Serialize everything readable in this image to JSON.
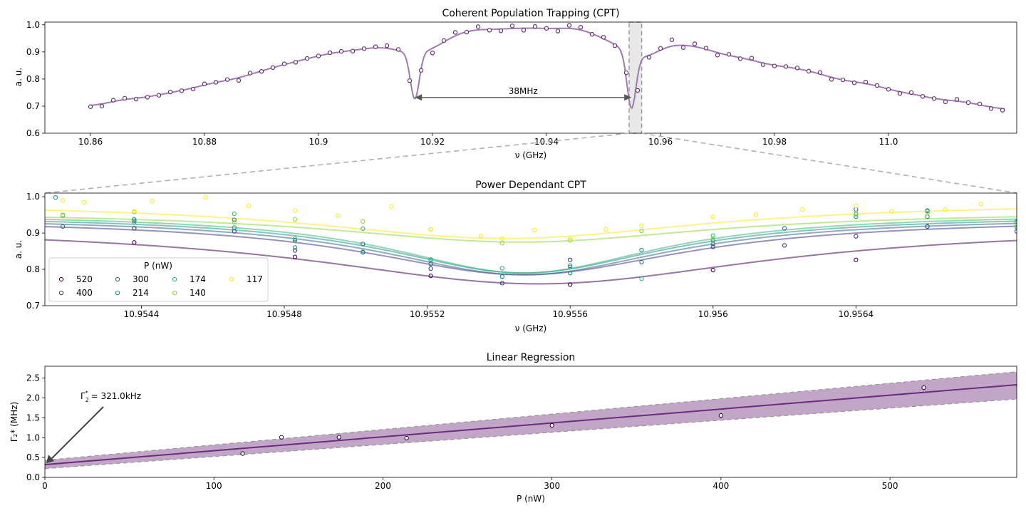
{
  "chart_data": [
    {
      "type": "scatter",
      "title": "Coherent Population Trapping (CPT)",
      "xlabel": "ν (GHz)",
      "ylabel": "a. u.",
      "xlim": [
        10.852,
        11.0225
      ],
      "ylim": [
        0.6,
        1.01
      ],
      "xticks": [
        10.86,
        10.88,
        10.9,
        10.92,
        10.94,
        10.96,
        10.98,
        11.0
      ],
      "xtick_labels": [
        "10.86",
        "10.88",
        "10.9",
        "10.92",
        "10.94",
        "10.96",
        "10.98",
        "11.0"
      ],
      "yticks": [
        0.6,
        0.7,
        0.8,
        0.9,
        1.0
      ],
      "ytick_labels": [
        "0.6",
        "0.7",
        "0.8",
        "0.9",
        "1.0"
      ],
      "grid": false,
      "color": "#6b2d7b",
      "fit_color": "#a07ab0",
      "annotation": {
        "text": "38MHz",
        "x_start": 10.9169,
        "x_end": 10.9549,
        "y": 0.732
      },
      "highlight_region": [
        10.9545,
        10.9567
      ],
      "points": [
        [
          10.86,
          0.698
        ],
        [
          10.862,
          0.7
        ],
        [
          10.864,
          0.722
        ],
        [
          10.866,
          0.729
        ],
        [
          10.868,
          0.726
        ],
        [
          10.87,
          0.733
        ],
        [
          10.872,
          0.74
        ],
        [
          10.874,
          0.752
        ],
        [
          10.876,
          0.757
        ],
        [
          10.878,
          0.763
        ],
        [
          10.88,
          0.782
        ],
        [
          10.882,
          0.788
        ],
        [
          10.884,
          0.798
        ],
        [
          10.886,
          0.795
        ],
        [
          10.888,
          0.822
        ],
        [
          10.89,
          0.828
        ],
        [
          10.892,
          0.842
        ],
        [
          10.894,
          0.856
        ],
        [
          10.896,
          0.862
        ],
        [
          10.898,
          0.876
        ],
        [
          10.9,
          0.885
        ],
        [
          10.902,
          0.897
        ],
        [
          10.904,
          0.902
        ],
        [
          10.906,
          0.903
        ],
        [
          10.908,
          0.912
        ],
        [
          10.91,
          0.919
        ],
        [
          10.912,
          0.923
        ],
        [
          10.914,
          0.909
        ],
        [
          10.916,
          0.794
        ],
        [
          10.918,
          0.832
        ],
        [
          10.92,
          0.896
        ],
        [
          10.922,
          0.942
        ],
        [
          10.924,
          0.972
        ],
        [
          10.926,
          0.973
        ],
        [
          10.928,
          0.993
        ],
        [
          10.93,
          0.98
        ],
        [
          10.932,
          0.978
        ],
        [
          10.934,
          0.996
        ],
        [
          10.936,
          0.98
        ],
        [
          10.938,
          0.994
        ],
        [
          10.94,
          0.987
        ],
        [
          10.942,
          0.977
        ],
        [
          10.944,
          0.998
        ],
        [
          10.946,
          0.991
        ],
        [
          10.948,
          0.965
        ],
        [
          10.95,
          0.954
        ],
        [
          10.952,
          0.923
        ],
        [
          10.954,
          0.823
        ],
        [
          10.956,
          0.758
        ],
        [
          10.958,
          0.88
        ],
        [
          10.96,
          0.913
        ],
        [
          10.962,
          0.945
        ],
        [
          10.964,
          0.916
        ],
        [
          10.966,
          0.93
        ],
        [
          10.968,
          0.914
        ],
        [
          10.97,
          0.888
        ],
        [
          10.972,
          0.891
        ],
        [
          10.974,
          0.875
        ],
        [
          10.976,
          0.877
        ],
        [
          10.978,
          0.853
        ],
        [
          10.98,
          0.848
        ],
        [
          10.982,
          0.846
        ],
        [
          10.984,
          0.841
        ],
        [
          10.986,
          0.829
        ],
        [
          10.988,
          0.824
        ],
        [
          10.99,
          0.799
        ],
        [
          10.992,
          0.797
        ],
        [
          10.994,
          0.786
        ],
        [
          10.996,
          0.789
        ],
        [
          10.998,
          0.776
        ],
        [
          11.0,
          0.762
        ],
        [
          11.002,
          0.747
        ],
        [
          11.004,
          0.75
        ],
        [
          11.006,
          0.736
        ],
        [
          11.008,
          0.728
        ],
        [
          11.01,
          0.716
        ],
        [
          11.012,
          0.725
        ],
        [
          11.014,
          0.713
        ],
        [
          11.016,
          0.708
        ],
        [
          11.018,
          0.691
        ],
        [
          11.02,
          0.685
        ]
      ]
    },
    {
      "type": "scatter",
      "title": "Power Dependant CPT",
      "xlabel": "ν (GHz)",
      "ylabel": "a. u.",
      "xlim": [
        10.95413,
        10.95685
      ],
      "ylim": [
        0.7,
        1.01
      ],
      "xticks": [
        10.9544,
        10.9548,
        10.9552,
        10.9556,
        10.956,
        10.9564
      ],
      "xtick_labels": [
        "10.9544",
        "10.9548",
        "10.9552",
        "10.9556",
        "10.956",
        "10.9564"
      ],
      "yticks": [
        0.7,
        0.8,
        0.9,
        1.0
      ],
      "ytick_labels": [
        "0.7",
        "0.8",
        "0.9",
        "1.0"
      ],
      "grid": false,
      "legend": {
        "title": "P (nW)",
        "position": "lower-left",
        "ncol": 4
      },
      "series": [
        {
          "name": "520",
          "color": "#440154",
          "fit": {
            "base": 0.92,
            "depth": 0.16,
            "center": 10.95551,
            "sigma": 0.00078
          },
          "points": [
            [
              10.95438,
              0.874
            ],
            [
              10.95483,
              0.834
            ],
            [
              10.95521,
              0.782
            ],
            [
              10.9556,
              0.758
            ],
            [
              10.956,
              0.798
            ],
            [
              10.9564,
              0.826
            ]
          ]
        },
        {
          "name": "400",
          "color": "#443983",
          "fit": {
            "base": 0.94,
            "depth": 0.155,
            "center": 10.95547,
            "sigma": 0.00055
          },
          "points": [
            [
              10.95438,
              0.913
            ],
            [
              10.95466,
              0.905
            ],
            [
              10.95483,
              0.852
            ],
            [
              10.95502,
              0.847
            ],
            [
              10.95521,
              0.802
            ],
            [
              10.95541,
              0.762
            ],
            [
              10.9556,
              0.826
            ],
            [
              10.956,
              0.862
            ],
            [
              10.9562,
              0.866
            ],
            [
              10.9564,
              0.891
            ],
            [
              10.9566,
              0.918
            ],
            [
              10.95685,
              0.905
            ]
          ]
        },
        {
          "name": "300",
          "color": "#31688e",
          "fit": {
            "base": 0.945,
            "depth": 0.16,
            "center": 10.95547,
            "sigma": 0.0005
          },
          "points": [
            [
              10.95418,
              0.918
            ],
            [
              10.95438,
              0.934
            ],
            [
              10.95466,
              0.936
            ],
            [
              10.95483,
              0.88
            ],
            [
              10.95502,
              0.87
            ],
            [
              10.95521,
              0.815
            ],
            [
              10.95541,
              0.78
            ],
            [
              10.9556,
              0.81
            ],
            [
              10.9558,
              0.82
            ],
            [
              10.956,
              0.87
            ],
            [
              10.9562,
              0.913
            ],
            [
              10.9564,
              0.965
            ],
            [
              10.9566,
              0.962
            ],
            [
              10.95685,
              0.93
            ]
          ]
        },
        {
          "name": "214",
          "color": "#21918c",
          "fit": {
            "base": 0.95,
            "depth": 0.16,
            "center": 10.95547,
            "sigma": 0.00048
          },
          "points": [
            [
              10.95416,
              0.998
            ],
            [
              10.95438,
              0.938
            ],
            [
              10.95466,
              0.915
            ],
            [
              10.95483,
              0.86
            ],
            [
              10.95502,
              0.848
            ],
            [
              10.95521,
              0.826
            ],
            [
              10.95541,
              0.78
            ],
            [
              10.9556,
              0.79
            ],
            [
              10.9558,
              0.853
            ],
            [
              10.956,
              0.88
            ],
            [
              10.9564,
              0.945
            ],
            [
              10.9566,
              0.945
            ],
            [
              10.95685,
              0.916
            ]
          ]
        },
        {
          "name": "174",
          "color": "#35b779",
          "fit": {
            "base": 0.955,
            "depth": 0.165,
            "center": 10.95547,
            "sigma": 0.00046
          },
          "points": [
            [
              10.95418,
              0.948
            ],
            [
              10.95438,
              0.93
            ],
            [
              10.95466,
              0.953
            ],
            [
              10.95483,
              0.884
            ],
            [
              10.95502,
              0.912
            ],
            [
              10.95521,
              0.827
            ],
            [
              10.95541,
              0.803
            ],
            [
              10.9556,
              0.806
            ],
            [
              10.9558,
              0.774
            ],
            [
              10.956,
              0.893
            ],
            [
              10.9564,
              0.952
            ],
            [
              10.9566,
              0.96
            ],
            [
              10.95685,
              0.932
            ]
          ]
        },
        {
          "name": "140",
          "color": "#90d743",
          "fit": {
            "base": 0.96,
            "depth": 0.085,
            "center": 10.95546,
            "sigma": 0.00065
          },
          "points": [
            [
              10.95418,
              0.95
            ],
            [
              10.95438,
              0.958
            ],
            [
              10.95466,
              0.93
            ],
            [
              10.95483,
              0.938
            ],
            [
              10.95502,
              0.932
            ],
            [
              10.95521,
              0.91
            ],
            [
              10.95541,
              0.872
            ],
            [
              10.9556,
              0.88
            ],
            [
              10.9558,
              0.906
            ],
            [
              10.956,
              0.885
            ],
            [
              10.9564,
              0.955
            ],
            [
              10.9566,
              0.955
            ],
            [
              10.95685,
              0.92
            ]
          ]
        },
        {
          "name": "117",
          "color": "#fde725",
          "fit": {
            "base": 0.985,
            "depth": 0.1,
            "center": 10.95542,
            "sigma": 0.00068
          },
          "points": [
            [
              10.95418,
              0.99
            ],
            [
              10.95424,
              0.985
            ],
            [
              10.95438,
              0.96
            ],
            [
              10.95443,
              0.988
            ],
            [
              10.95458,
              0.998
            ],
            [
              10.9547,
              0.975
            ],
            [
              10.95483,
              0.962
            ],
            [
              10.95495,
              0.948
            ],
            [
              10.9551,
              0.973
            ],
            [
              10.95521,
              0.91
            ],
            [
              10.95535,
              0.892
            ],
            [
              10.95541,
              0.885
            ],
            [
              10.9555,
              0.908
            ],
            [
              10.9556,
              0.885
            ],
            [
              10.9557,
              0.91
            ],
            [
              10.9558,
              0.92
            ],
            [
              10.956,
              0.945
            ],
            [
              10.95612,
              0.95
            ],
            [
              10.95625,
              0.965
            ],
            [
              10.9564,
              0.975
            ],
            [
              10.9565,
              0.96
            ],
            [
              10.95665,
              0.965
            ],
            [
              10.95675,
              0.98
            ]
          ]
        }
      ]
    },
    {
      "type": "line",
      "title": "Linear Regression",
      "xlabel": "P (nW)",
      "ylabel": "Γ₂* (MHz)",
      "xlim": [
        0,
        575
      ],
      "ylim": [
        0,
        2.8
      ],
      "xticks": [
        0,
        100,
        200,
        300,
        400,
        500
      ],
      "xtick_labels": [
        "0",
        "100",
        "200",
        "300",
        "400",
        "500"
      ],
      "yticks": [
        0,
        0.5,
        1.0,
        1.5,
        2.0,
        2.5
      ],
      "ytick_labels": [
        "0.0",
        "0.5",
        "1.0",
        "1.5",
        "2.0",
        "2.5"
      ],
      "grid": false,
      "color": "#6b2d7b",
      "band_color": "#9a6aa3",
      "fit": {
        "intercept": 0.321,
        "slope": 0.0035,
        "band_low_intercept": 0.22,
        "band_low_slope": 0.00305,
        "band_high_intercept": 0.43,
        "band_high_slope": 0.00388
      },
      "annotation": {
        "text_main": "Γ",
        "text_sub": "2",
        "text_sup": "*",
        "text_rest": " = 321.0kHz",
        "x": 0,
        "y": 0.321
      },
      "points": [
        [
          117,
          0.6
        ],
        [
          140,
          1.01
        ],
        [
          174,
          1.01
        ],
        [
          214,
          0.99
        ],
        [
          300,
          1.31
        ],
        [
          400,
          1.56
        ],
        [
          520,
          2.26
        ]
      ]
    }
  ]
}
